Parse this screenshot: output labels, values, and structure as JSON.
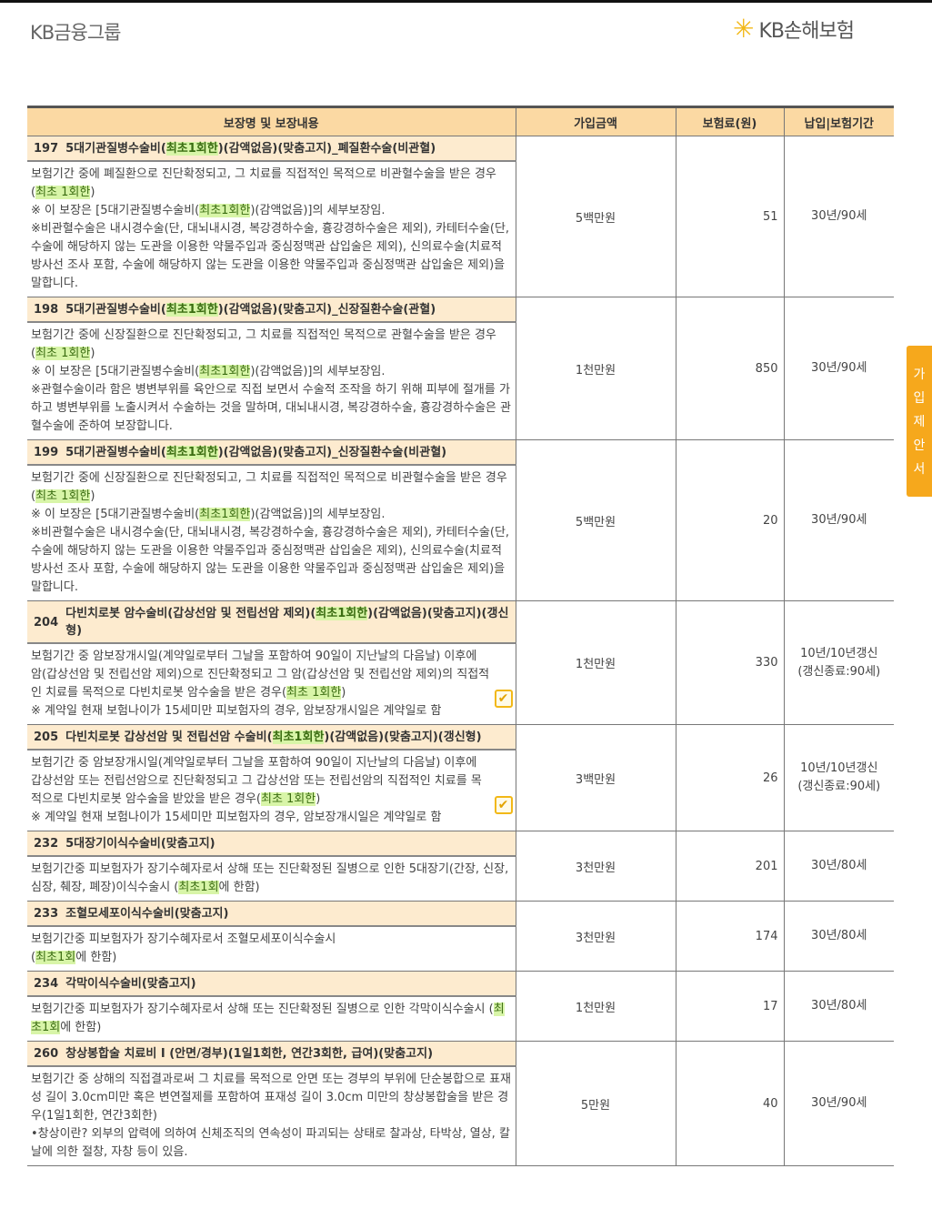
{
  "header": {
    "left_logo": "KB금융그룹",
    "right_logo": "KB손해보험",
    "side_tab": [
      "가",
      "입",
      "제",
      "안",
      "서"
    ]
  },
  "table": {
    "columns": [
      "보장명 및 보장내용",
      "가입금액",
      "보험료(원)",
      "납입|보험기간"
    ],
    "rows": [
      {
        "no": "197",
        "title": [
          {
            "t": "5대기관질병수술비("
          },
          {
            "t": "최초1회한",
            "hl": true
          },
          {
            "t": ")(감액없음)(맞춤고지)_폐질환수술(비관혈)"
          }
        ],
        "body": [
          [
            {
              "t": "보험기간 중에 폐질환으로 진단확정되고, 그 치료를 직접적인 목적으로 비관혈수술을 받은 경우 ("
            },
            {
              "t": "최초 1회한",
              "hl": true
            },
            {
              "t": ")"
            }
          ],
          [
            {
              "t": "※ 이 보장은 [5대기관질병수술비("
            },
            {
              "t": "최초1회한",
              "hl": true
            },
            {
              "t": ")(감액없음)]의 세부보장임."
            }
          ],
          [
            {
              "t": "※비관혈수술은 내시경수술(단, 대뇌내시경, 복강경하수술, 흉강경하수술은 제외), 카테터수술(단, 수술에 해당하지 않는 도관을 이용한 약물주입과 중심정맥관 삽입술은 제외), 신의료수술(치료적 방사선 조사 포함, 수술에 해당하지 않는 도관을 이용한 약물주입과 중심정맥관 삽입술은 제외)을 말합니다."
            }
          ]
        ],
        "amount": "5백만원",
        "premium": "51",
        "period": [
          "30년/90세"
        ],
        "check": false
      },
      {
        "no": "198",
        "title": [
          {
            "t": "5대기관질병수술비("
          },
          {
            "t": "최초1회한",
            "hl": true
          },
          {
            "t": ")(감액없음)(맞춤고지)_신장질환수술(관혈)"
          }
        ],
        "body": [
          [
            {
              "t": "보험기간 중에 신장질환으로 진단확정되고, 그 치료를 직접적인 목적으로 관혈수술을 받은 경우 ("
            },
            {
              "t": "최초 1회한",
              "hl": true
            },
            {
              "t": ")"
            }
          ],
          [
            {
              "t": "※ 이 보장은 [5대기관질병수술비("
            },
            {
              "t": "최초1회한",
              "hl": true
            },
            {
              "t": ")(감액없음)]의 세부보장임."
            }
          ],
          [
            {
              "t": "※관혈수술이라 함은 병변부위를 육안으로 직접 보면서 수술적 조작을 하기 위해 피부에 절개를 가하고 병변부위를 노출시켜서 수술하는 것을 말하며, 대뇌내시경, 복강경하수술, 흉강경하수술은 관혈수술에 준하여 보장합니다."
            }
          ]
        ],
        "amount": "1천만원",
        "premium": "850",
        "period": [
          "30년/90세"
        ],
        "check": false
      },
      {
        "no": "199",
        "title": [
          {
            "t": "5대기관질병수술비("
          },
          {
            "t": "최초1회한",
            "hl": true
          },
          {
            "t": ")(감액없음)(맞춤고지)_신장질환수술(비관혈)"
          }
        ],
        "body": [
          [
            {
              "t": "보험기간 중에 신장질환으로 진단확정되고, 그 치료를 직접적인 목적으로 비관혈수술을 받은 경우 ("
            },
            {
              "t": "최초 1회한",
              "hl": true
            },
            {
              "t": ")"
            }
          ],
          [
            {
              "t": "※ 이 보장은 [5대기관질병수술비("
            },
            {
              "t": "최초1회한",
              "hl": true
            },
            {
              "t": ")(감액없음)]의 세부보장임."
            }
          ],
          [
            {
              "t": "※비관혈수술은 내시경수술(단, 대뇌내시경, 복강경하수술, 흉강경하수술은 제외), 카테터수술(단, 수술에 해당하지 않는 도관을 이용한 약물주입과 중심정맥관 삽입술은 제외), 신의료수술(치료적 방사선 조사 포함, 수술에 해당하지 않는 도관을 이용한 약물주입과 중심정맥관 삽입술은 제외)을 말합니다."
            }
          ]
        ],
        "amount": "5백만원",
        "premium": "20",
        "period": [
          "30년/90세"
        ],
        "check": false
      },
      {
        "no": "204",
        "title": [
          {
            "t": "다빈치로봇 암수술비(갑상선암 및 전립선암 제외)("
          },
          {
            "t": "최초1회한",
            "hl": true
          },
          {
            "t": ")(감액없음)(맞춤고지)(갱신형)"
          }
        ],
        "body": [
          [
            {
              "t": "보험기간 중 암보장개시일(계약일로부터 그날을 포함하여 90일이 지난날의 다음날) 이후에 암(갑상선암 및 전립선암 제외)으로 진단확정되고 그 암(갑상선암 및 전립선암 제외)의 직접적인 치료를 목적으로 다빈치로봇 암수술을 받은 경우("
            },
            {
              "t": "최초 1회한",
              "hl": true
            },
            {
              "t": ")"
            }
          ],
          [
            {
              "t": "※ 계약일 현재 보험나이가 15세미만 피보험자의 경우, 암보장개시일은 계약일로 함"
            }
          ]
        ],
        "amount": "1천만원",
        "premium": "330",
        "period": [
          "10년/10년갱신",
          "(갱신종료:90세)"
        ],
        "check": true
      },
      {
        "no": "205",
        "title": [
          {
            "t": "다빈치로봇 갑상선암 및 전립선암 수술비("
          },
          {
            "t": "최초1회한",
            "hl": true
          },
          {
            "t": ")(감액없음)(맞춤고지)(갱신형)"
          }
        ],
        "body": [
          [
            {
              "t": "보험기간 중 암보장개시일(계약일로부터 그날을 포함하여 90일이 지난날의 다음날) 이후에 갑상선암 또는 전립선암으로 진단확정되고 그 갑상선암 또는 전립선암의 직접적인 치료를 목적으로 다빈치로봇 암수술을 받았을 받은 경우("
            },
            {
              "t": "최초 1회한",
              "hl": true
            },
            {
              "t": ")"
            }
          ],
          [
            {
              "t": "※ 계약일 현재 보험나이가 15세미만 피보험자의 경우, 암보장개시일은 계약일로 함"
            }
          ]
        ],
        "amount": "3백만원",
        "premium": "26",
        "period": [
          "10년/10년갱신",
          "(갱신종료:90세)"
        ],
        "check": true
      },
      {
        "no": "232",
        "title": [
          {
            "t": "5대장기이식수술비(맞춤고지)"
          }
        ],
        "body": [
          [
            {
              "t": "보험기간중 피보험자가 장기수혜자로서 상해 또는 진단확정된 질병으로 인한 5대장기(간장, 신장, 심장, 췌장, 폐장)이식수술시 ("
            },
            {
              "t": "최초1회",
              "hl": true
            },
            {
              "t": "에 한함)"
            }
          ]
        ],
        "amount": "3천만원",
        "premium": "201",
        "period": [
          "30년/80세"
        ],
        "check": false
      },
      {
        "no": "233",
        "title": [
          {
            "t": "조혈모세포이식수술비(맞춤고지)"
          }
        ],
        "body": [
          [
            {
              "t": "보험기간중 피보험자가 장기수혜자로서 조혈모세포이식수술시"
            }
          ],
          [
            {
              "t": "("
            },
            {
              "t": "최초1회",
              "hl": true
            },
            {
              "t": "에 한함)"
            }
          ]
        ],
        "amount": "3천만원",
        "premium": "174",
        "period": [
          "30년/80세"
        ],
        "check": false
      },
      {
        "no": "234",
        "title": [
          {
            "t": "각막이식수술비(맞춤고지)"
          }
        ],
        "body": [
          [
            {
              "t": "보험기간중 피보험자가 장기수혜자로서 상해 또는 진단확정된 질병으로 인한 각막이식수술시 ("
            },
            {
              "t": "최초1회",
              "hl": true
            },
            {
              "t": "에 한함)"
            }
          ]
        ],
        "amount": "1천만원",
        "premium": "17",
        "period": [
          "30년/80세"
        ],
        "check": false
      },
      {
        "no": "260",
        "title": [
          {
            "t": "창상봉합술 치료비 I (안면/경부)(1일1회한, 연간3회한, 급여)(맞춤고지)"
          }
        ],
        "body": [
          [
            {
              "t": "보험기간 중 상해의 직접결과로써 그 치료를 목적으로 안면 또는 경부의 부위에 단순봉합으로 표재성 길이 3.0cm미만 혹은 변연절제를 포함하여 표재성 길이 3.0cm 미만의 창상봉합술을 받은 경우(1일1회한, 연간3회한)"
            }
          ],
          [
            {
              "t": "•창상이란? 외부의 압력에 의하여 신체조직의 연속성이 파괴되는 상태로 찰과상, 타박상, 열상, 칼날에 의한 절창, 자창 등이 있음."
            }
          ]
        ],
        "amount": "5만원",
        "premium": "40",
        "period": [
          "30년/90세"
        ],
        "check": false
      }
    ]
  },
  "colors": {
    "header_bg": "#fbd9a3",
    "title_bg": "#fdebcf",
    "highlight": "#d8f5a8",
    "side_tab": "#f6a81c",
    "logo_star": "#f2b817"
  }
}
